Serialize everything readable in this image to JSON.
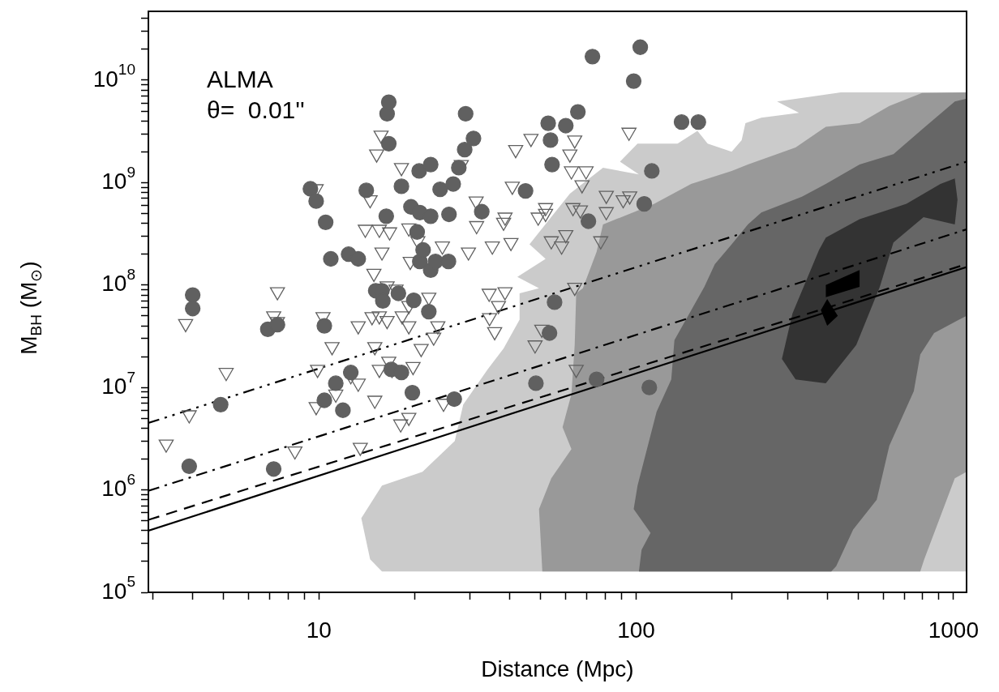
{
  "chart_data": {
    "type": "scatter",
    "xlabel": "Distance (Mpc)",
    "ylabel": "M$_{BH}$  (M$_{⊙}$)",
    "annotations": [
      "ALMA",
      "θ=  0.01''"
    ],
    "log": "xy",
    "xlim": [
      2.9,
      1100
    ],
    "ylim": [
      100000.0,
      47000000000.0
    ],
    "xticks": [
      {
        "value": 3,
        "label": null
      },
      {
        "value": 4,
        "label": null
      },
      {
        "value": 5,
        "label": null
      },
      {
        "value": 6,
        "label": null
      },
      {
        "value": 7,
        "label": null
      },
      {
        "value": 8,
        "label": null
      },
      {
        "value": 9,
        "label": null
      },
      10,
      {
        "value": 20,
        "label": null
      },
      {
        "value": 30,
        "label": null
      },
      {
        "value": 40,
        "label": null
      },
      {
        "value": 50,
        "label": null
      },
      {
        "value": 60,
        "label": null
      },
      {
        "value": 70,
        "label": null
      },
      {
        "value": 80,
        "label": null
      },
      {
        "value": 90,
        "label": null
      },
      100,
      {
        "value": 200,
        "label": null
      },
      {
        "value": 300,
        "label": null
      },
      {
        "value": 400,
        "label": null
      },
      {
        "value": 500,
        "label": null
      },
      {
        "value": 600,
        "label": null
      },
      {
        "value": 700,
        "label": null
      },
      {
        "value": 800,
        "label": null
      },
      {
        "value": 900,
        "label": null
      },
      1000
    ],
    "yticks": [
      {
        "value": 100000.0,
        "label": "10$^{5}$"
      },
      {
        "value": 200000.0,
        "label": null
      },
      {
        "value": 300000.0,
        "label": null
      },
      {
        "value": 400000.0,
        "label": null
      },
      {
        "value": 500000.0,
        "label": null
      },
      {
        "value": 600000.0,
        "label": null
      },
      {
        "value": 700000.0,
        "label": null
      },
      {
        "value": 800000.0,
        "label": null
      },
      {
        "value": 900000.0,
        "label": null
      },
      {
        "value": 1000000.0,
        "label": "10$^{6}$"
      },
      {
        "value": 2000000.0,
        "label": null
      },
      {
        "value": 3000000.0,
        "label": null
      },
      {
        "value": 4000000.0,
        "label": null
      },
      {
        "value": 5000000.0,
        "label": null
      },
      {
        "value": 6000000.0,
        "label": null
      },
      {
        "value": 7000000.0,
        "label": null
      },
      {
        "value": 8000000.0,
        "label": null
      },
      {
        "value": 9000000.0,
        "label": null
      },
      {
        "value": 10000000.0,
        "label": "10$^{7}$"
      },
      {
        "value": 20000000.0,
        "label": null
      },
      {
        "value": 30000000.0,
        "label": null
      },
      {
        "value": 40000000.0,
        "label": null
      },
      {
        "value": 50000000.0,
        "label": null
      },
      {
        "value": 60000000.0,
        "label": null
      },
      {
        "value": 70000000.0,
        "label": null
      },
      {
        "value": 80000000.0,
        "label": null
      },
      {
        "value": 90000000.0,
        "label": null
      },
      {
        "value": 100000000.0,
        "label": "10$^{8}$"
      },
      {
        "value": 200000000.0,
        "label": null
      },
      {
        "value": 300000000.0,
        "label": null
      },
      {
        "value": 400000000.0,
        "label": null
      },
      {
        "value": 500000000.0,
        "label": null
      },
      {
        "value": 600000000.0,
        "label": null
      },
      {
        "value": 700000000.0,
        "label": null
      },
      {
        "value": 800000000.0,
        "label": null
      },
      {
        "value": 900000000.0,
        "label": null
      },
      {
        "value": 1000000000.0,
        "label": "10$^{9}$"
      },
      {
        "value": 2000000000.0,
        "label": null
      },
      {
        "value": 3000000000.0,
        "label": null
      },
      {
        "value": 4000000000.0,
        "label": null
      },
      {
        "value": 5000000000.0,
        "label": null
      },
      {
        "value": 6000000000.0,
        "label": null
      },
      {
        "value": 7000000000.0,
        "label": null
      },
      {
        "value": 8000000000.0,
        "label": null
      },
      {
        "value": 9000000000.0,
        "label": null
      },
      {
        "value": 10000000000.0,
        "label": "10$^{10}$"
      },
      {
        "value": 20000000000.0,
        "label": null
      },
      {
        "value": 30000000000.0,
        "label": null
      },
      {
        "value": 40000000000.0,
        "label": null
      }
    ],
    "series": [
      {
        "type": "area",
        "color": "#cbcbcb",
        "x": [
          15.8,
          14.5,
          13.6,
          15.8,
          21.2,
          26.8,
          28.5,
          34.0,
          38.2,
          42.9,
          42.9,
          49.4,
          42.2,
          51.8,
          46.1,
          61.8,
          78.6,
          102,
          88.9,
          101,
          135,
          156,
          168,
          200,
          215,
          221,
          248,
          326,
          278,
          442,
          1100,
          1100
        ],
        "values": [
          160000.0,
          210000.0,
          530000.0,
          1100000.0,
          1500000.0,
          3000000.0,
          6800000.0,
          15000000.0,
          24000000.0,
          46000000.0,
          83000000.0,
          93000000.0,
          120000000.0,
          180000000.0,
          250000000.0,
          780000000.0,
          1400000000.0,
          1200000000.0,
          1600000000.0,
          2400000000.0,
          2400000000.0,
          3200000000.0,
          2400000000.0,
          2000000000.0,
          2600000000.0,
          3800000000.0,
          4300000000.0,
          4800000000.0,
          6200000000.0,
          7600000000.0,
          7600000000.0,
          160000.0
        ]
      },
      {
        "type": "area",
        "color": "#999999",
        "x": [
          50.6,
          49.4,
          54.0,
          62.5,
          58.6,
          62.5,
          64.0,
          64.7,
          67.9,
          75.0,
          78.6,
          114,
          149,
          200,
          225,
          318,
          396,
          506,
          628,
          796,
          1100,
          1100,
          1010,
          809,
          786
        ],
        "values": [
          160000.0,
          650000.0,
          1300000.0,
          2500000.0,
          4100000.0,
          8600000.0,
          26000000.0,
          83000000.0,
          93000000.0,
          210000000.0,
          390000000.0,
          620000000.0,
          970000000.0,
          1300000000.0,
          1500000000.0,
          2200000000.0,
          3500000000.0,
          3800000000.0,
          5600000000.0,
          7500000000.0,
          7600000000.0,
          1500000.0,
          1300000.0,
          210000.0,
          160000.0
        ]
      },
      {
        "type": "area",
        "color": "#666666",
        "x": [
          102,
          104,
          111,
          98.2,
          101,
          116,
          129,
          132,
          164,
          177,
          200,
          225,
          248,
          333,
          396,
          506,
          647,
          796,
          1010,
          1100,
          1100,
          1030,
          869,
          786,
          750,
          628,
          573,
          483,
          427,
          412
        ],
        "values": [
          160000.0,
          260000.0,
          380000.0,
          650000.0,
          1100000.0,
          5800000.0,
          12000000.0,
          29000000.0,
          96000000.0,
          160000000.0,
          250000000.0,
          390000000.0,
          510000000.0,
          730000000.0,
          970000000.0,
          1500000000.0,
          1900000000.0,
          3300000000.0,
          6200000000.0,
          6600000000.0,
          50000000.0,
          45000000.0,
          34000000.0,
          21000000.0,
          9200000.0,
          2700000.0,
          800000.0,
          410000.0,
          180000.0,
          160000.0
        ]
      },
      {
        "type": "area",
        "color": "#333333",
        "x": [
          506,
          396,
          377,
          311,
          288,
          318,
          396,
          494,
          586,
          647,
          805,
          1010,
          1030,
          1010,
          910,
          711
        ],
        "values": [
          440000000.0,
          290000000.0,
          220000000.0,
          53000000.0,
          19000000.0,
          12000000.0,
          11000000.0,
          26000000.0,
          96000000.0,
          260000000.0,
          460000000.0,
          390000000.0,
          680000000.0,
          1100000000.0,
          970000000.0,
          620000000.0
        ]
      },
      {
        "type": "area",
        "color": "#000000",
        "x": [
          396,
          506,
          506,
          396
        ],
        "values": [
          100000000.0,
          140000000.0,
          96000000.0,
          76000000.0
        ]
      },
      {
        "type": "area",
        "color": "#000000",
        "x": [
          382,
          400,
          432,
          400
        ],
        "values": [
          57000000.0,
          73000000.0,
          50000000.0,
          40000000.0
        ]
      },
      {
        "type": "line",
        "color": "#000000",
        "line_style": "solid",
        "x": [
          2.9,
          1100
        ],
        "values": [
          400000.0,
          150000000.0
        ]
      },
      {
        "type": "line",
        "color": "#000000",
        "line_style": "dashed",
        "x": [
          2.9,
          1100
        ],
        "values": [
          510000.0,
          160000000.0
        ]
      },
      {
        "type": "line",
        "color": "#000000",
        "line_style": "dashdot",
        "x": [
          2.9,
          1100
        ],
        "values": [
          980000.0,
          350000000.0
        ]
      },
      {
        "type": "line",
        "color": "#000000",
        "line_style": "dashdotdot",
        "x": [
          2.9,
          1100
        ],
        "values": [
          4500000.0,
          1600000000.0
        ]
      },
      {
        "marker": "triangle-down",
        "color": "#606060",
        "x": [
          3.8,
          5.1,
          3.9,
          3.3,
          7.2,
          7.4,
          7.4,
          10.3,
          13.3,
          11.0,
          9.9,
          9.8,
          11.3,
          12.6,
          13.3,
          8.4,
          13.5,
          15.0,
          15.5,
          16.6,
          17.0,
          19.8,
          21.0,
          23.7,
          23.0,
          22.2,
          19.2,
          18.3,
          16.4,
          14.7,
          15.5,
          17.5,
          16.4,
          19.2,
          15.0,
          19.2,
          18.1,
          24.7,
          14.9,
          19.4,
          15.8,
          29.6,
          24.5,
          15.7,
          15.2,
          18.2,
          28.1,
          31.3,
          31.4,
          14.5,
          14.0,
          15.5,
          16.7,
          19.2,
          20.5,
          9.8,
          46.6,
          41.7,
          64.0,
          61.8,
          94.9,
          62.5,
          69.5,
          67.5,
          40.7,
          38.6,
          38.2,
          49.1,
          51.8,
          51.8,
          63.2,
          66.7,
          80.5,
          80.5,
          91.0,
          95.4,
          35.2,
          40.3,
          54.0,
          58.2,
          60.0,
          77.3,
          34.4,
          38.6,
          64.0,
          36.8,
          34.5,
          35.8,
          50.4,
          48.0,
          64.7
        ],
        "values": [
          42000000.0,
          14000000.0,
          5400000.0,
          2800000.0,
          50000000.0,
          44000000.0,
          86000000.0,
          49000000.0,
          40000000.0,
          25000000.0,
          15000000.0,
          6500000.0,
          8600000.0,
          13000000.0,
          11000000.0,
          2400000.0,
          2600000.0,
          25000000.0,
          15000000.0,
          18000000.0,
          15000000.0,
          16000000.0,
          24000000.0,
          40000000.0,
          31000000.0,
          76000000.0,
          40000000.0,
          50000000.0,
          45000000.0,
          49000000.0,
          50000000.0,
          91000000.0,
          98000000.0,
          63000000.0,
          7500000.0,
          5100000.0,
          4400000.0,
          7000000.0,
          130000000.0,
          170000000.0,
          210000000.0,
          210000000.0,
          240000000.0,
          2900000000.0,
          1900000000.0,
          1400000000.0,
          1500000000.0,
          660000000.0,
          380000000.0,
          680000000.0,
          350000000.0,
          350000000.0,
          330000000.0,
          360000000.0,
          270000000.0,
          870000000.0,
          2700000000.0,
          2100000000.0,
          2600000000.0,
          1900000000.0,
          3100000000.0,
          1300000000.0,
          1300000000.0,
          950000000.0,
          920000000.0,
          460000000.0,
          410000000.0,
          460000000.0,
          570000000.0,
          500000000.0,
          570000000.0,
          540000000.0,
          750000000.0,
          520000000.0,
          680000000.0,
          740000000.0,
          240000000.0,
          260000000.0,
          270000000.0,
          240000000.0,
          310000000.0,
          270000000.0,
          83000000.0,
          86000000.0,
          95000000.0,
          63000000.0,
          48000000.0,
          35000000.0,
          37000000.0,
          26000000.0,
          15000000.0
        ]
      },
      {
        "marker": "circle",
        "color": "#606060",
        "x": [
          4.0,
          4.0,
          3.9,
          4.9,
          7.2,
          6.9,
          7.4,
          10.4,
          10.4,
          11.3,
          11.9,
          12.6,
          9.4,
          9.8,
          10.5,
          10.9,
          12.4,
          13.3,
          14.1,
          15.1,
          15.8,
          15.9,
          16.3,
          16.4,
          16.6,
          16.6,
          16.9,
          17.8,
          18.2,
          18.2,
          19.5,
          19.7,
          19.9,
          20.4,
          20.7,
          20.8,
          20.8,
          21.3,
          22.2,
          22.5,
          22.5,
          22.5,
          23.3,
          24.1,
          25.6,
          25.7,
          26.5,
          26.7,
          27.6,
          28.8,
          29.0,
          30.7,
          32.6,
          44.8,
          52.8,
          53.7,
          54.3,
          55.3,
          53.3,
          48.3,
          60.0,
          65.5,
          70.7,
          75.0,
          72.8,
          98.2,
          103,
          112,
          106,
          110,
          139,
          157
        ],
        "values": [
          80000000.0,
          59000000.0,
          1700000.0,
          6800000.0,
          1600000.0,
          37000000.0,
          41000000.0,
          40000000.0,
          7500000.0,
          11000000.0,
          6000000.0,
          14000000.0,
          870000000.0,
          660000000.0,
          410000000.0,
          180000000.0,
          200000000.0,
          180000000.0,
          840000000.0,
          88000000.0,
          88000000.0,
          70000000.0,
          470000000.0,
          4700000000.0,
          6100000000.0,
          2400000000.0,
          15000000.0,
          83000000.0,
          920000000.0,
          14000000.0,
          580000000.0,
          8900000.0,
          71000000.0,
          330000000.0,
          1300000000.0,
          510000000.0,
          170000000.0,
          220000000.0,
          55000000.0,
          1500000000.0,
          470000000.0,
          140000000.0,
          170000000.0,
          860000000.0,
          170000000.0,
          490000000.0,
          970000000.0,
          7700000.0,
          1400000000.0,
          2100000000.0,
          4700000000.0,
          2700000000.0,
          520000000.0,
          830000000.0,
          3800000000.0,
          2600000000.0,
          1500000000.0,
          68000000.0,
          34000000.0,
          11000000.0,
          3600000000.0,
          4900000000.0,
          420000000.0,
          12000000.0,
          17000000000.0,
          9800000000.0,
          21000000000.0,
          1300000000.0,
          620000000.0,
          10000000.0,
          3900000000.0,
          3900000000.0
        ]
      }
    ]
  }
}
